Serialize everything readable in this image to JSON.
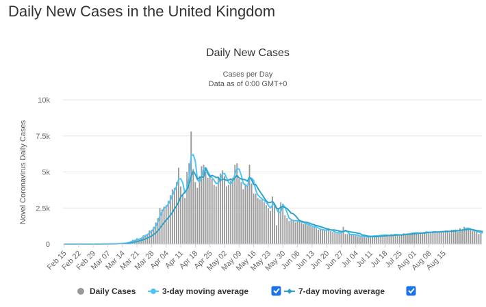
{
  "page": {
    "title": "Daily New Cases in the United Kingdom"
  },
  "chart_data": {
    "type": "bar",
    "title": "Daily New Cases",
    "subtitle": [
      "Cases per Day",
      "Data as of 0:00 GMT+0"
    ],
    "ylabel": "Novel Coronavirus Daily Cases",
    "xlabel": "",
    "ylim": [
      0,
      10000
    ],
    "y_ticks": [
      {
        "value": 0,
        "label": "0"
      },
      {
        "value": 2500,
        "label": "2.5k"
      },
      {
        "value": 5000,
        "label": "5k"
      },
      {
        "value": 7500,
        "label": "7.5k"
      },
      {
        "value": 10000,
        "label": "10k"
      }
    ],
    "x_tick_labels": [
      "Feb 15",
      "Feb 22",
      "Feb 29",
      "Mar 07",
      "Mar 14",
      "Mar 21",
      "Mar 28",
      "Apr 04",
      "Apr 11",
      "Apr 18",
      "Apr 25",
      "May 02",
      "May 09",
      "May 16",
      "May 23",
      "May 30",
      "Jun 06",
      "Jun 13",
      "Jun 20",
      "Jun 27",
      "Jul 04",
      "Jul 11",
      "Jul 18",
      "Jul 25",
      "Aug 01",
      "Aug 08",
      "Aug 15"
    ],
    "start_label": "Feb 15",
    "legend": {
      "position": "bottom",
      "items": [
        {
          "name": "Daily Cases",
          "marker": "circle",
          "color": "#999999",
          "checkbox": false
        },
        {
          "name": "3-day moving average",
          "marker": "circle-line",
          "color": "#4FC3F7",
          "checkbox": true,
          "checked": true
        },
        {
          "name": "7-day moving average",
          "marker": "diamond-line",
          "color": "#2EA3C7",
          "checkbox": true,
          "checked": true
        }
      ]
    },
    "grid": true,
    "series": [
      {
        "name": "Daily Cases",
        "type": "bar",
        "color": "#999999",
        "values": [
          0,
          0,
          0,
          0,
          0,
          0,
          0,
          0,
          0,
          0,
          0,
          0,
          0,
          0,
          3,
          2,
          4,
          4,
          3,
          5,
          8,
          10,
          14,
          16,
          20,
          30,
          40,
          50,
          60,
          70,
          100,
          140,
          210,
          300,
          250,
          410,
          350,
          450,
          600,
          650,
          700,
          950,
          1000,
          1200,
          1500,
          1800,
          2500,
          2400,
          2600,
          2700,
          3000,
          3400,
          3800,
          3900,
          4300,
          5300,
          4000,
          3400,
          3200,
          5000,
          5600,
          7800,
          5200,
          4300,
          3900,
          4700,
          5400,
          5500,
          5000,
          4600,
          4700,
          4500,
          4100,
          4000,
          4600,
          4900,
          5100,
          4700,
          4000,
          4100,
          4400,
          4600,
          5500,
          5600,
          4500,
          4300,
          3800,
          4200,
          4000,
          5500,
          4200,
          3500,
          3500,
          3200,
          3100,
          3100,
          2900,
          2700,
          2500,
          2300,
          3300,
          2700,
          1300,
          2500,
          2900,
          2800,
          2000,
          1800,
          1600,
          1700,
          1600,
          1500,
          1600,
          1600,
          1500,
          1400,
          1400,
          1300,
          1250,
          1200,
          1250,
          1100,
          1000,
          1000,
          1000,
          950,
          950,
          1100,
          900,
          850,
          800,
          750,
          800,
          800,
          1200,
          700,
          700,
          650,
          650,
          700,
          600,
          550,
          500,
          600,
          550,
          450,
          500,
          500,
          550,
          600,
          550,
          550,
          600,
          650,
          650,
          600,
          550,
          700,
          650,
          650,
          650,
          600,
          650,
          750,
          700,
          700,
          750,
          800,
          750,
          800,
          750,
          700,
          800,
          850,
          850,
          800,
          800,
          900,
          800,
          850,
          850,
          900,
          900,
          950,
          850,
          800,
          1000,
          1000,
          900,
          850,
          1100,
          1000,
          1200,
          1100,
          1000,
          1000,
          900,
          900,
          900,
          700,
          750
        ]
      },
      {
        "name": "3-day moving average",
        "type": "line",
        "color": "#4FC3F7",
        "values": [
          0,
          0,
          0,
          0,
          0,
          0,
          0,
          0,
          0,
          0,
          0,
          0,
          0,
          1,
          2,
          3,
          3,
          4,
          4,
          5,
          7,
          10,
          11,
          13,
          17,
          20,
          30,
          37,
          42,
          60,
          73,
          103,
          150,
          217,
          253,
          323,
          333,
          403,
          467,
          567,
          650,
          767,
          883,
          1050,
          1233,
          1500,
          1933,
          2233,
          2500,
          2567,
          2767,
          3033,
          3400,
          3700,
          4000,
          4500,
          4533,
          4233,
          3533,
          3867,
          4600,
          6133,
          6200,
          5767,
          4467,
          4300,
          4667,
          5200,
          5300,
          5033,
          4767,
          4600,
          4433,
          4200,
          4233,
          4500,
          4867,
          4900,
          4600,
          4267,
          4167,
          4367,
          4833,
          5233,
          5200,
          4800,
          4200,
          4100,
          4000,
          4567,
          4567,
          4400,
          3733,
          3400,
          3267,
          3133,
          3033,
          2900,
          2700,
          2500,
          2700,
          2767,
          2433,
          2167,
          2233,
          2733,
          2567,
          2200,
          1800,
          1700,
          1633,
          1600,
          1633,
          1567,
          1567,
          1500,
          1433,
          1367,
          1317,
          1250,
          1233,
          1183,
          1117,
          1033,
          1000,
          983,
          967,
          1000,
          983,
          950,
          850,
          800,
          783,
          783,
          917,
          900,
          867,
          683,
          667,
          667,
          650,
          617,
          550,
          550,
          550,
          517,
          483,
          517,
          550,
          567,
          567,
          583,
          600,
          617,
          633,
          617,
          600,
          617,
          633,
          667,
          650,
          633,
          633,
          667,
          683,
          700,
          717,
          750,
          767,
          783,
          767,
          750,
          767,
          800,
          833,
          817,
          817,
          833,
          867,
          833,
          850,
          867,
          867,
          883,
          900,
          883,
          883,
          933,
          967,
          917,
          933,
          983,
          1033,
          1100,
          1100,
          1033,
          967,
          933,
          900,
          833,
          783,
          783
        ]
      },
      {
        "name": "7-day moving average",
        "type": "line",
        "color": "#2EA3C7",
        "values": [
          0,
          0,
          0,
          0,
          0,
          0,
          0,
          0,
          0,
          0,
          0,
          0,
          0,
          0,
          0,
          1,
          2,
          2,
          3,
          3,
          4,
          5,
          7,
          8,
          11,
          14,
          17,
          22,
          29,
          38,
          48,
          57,
          74,
          102,
          141,
          179,
          219,
          262,
          309,
          359,
          424,
          495,
          562,
          665,
          779,
          916,
          1110,
          1307,
          1486,
          1670,
          1818,
          2000,
          2201,
          2429,
          2643,
          2900,
          3273,
          3443,
          3614,
          3769,
          4143,
          4700,
          5057,
          4836,
          4486,
          4616,
          4650,
          4643,
          5271,
          4886,
          4663,
          4763,
          4700,
          4614,
          4633,
          4414,
          4500,
          4500,
          4414,
          4443,
          4514,
          4414,
          4600,
          4757,
          4586,
          4514,
          4486,
          4457,
          4357,
          4643,
          4461,
          4129,
          4129,
          3871,
          3643,
          3443,
          3214,
          3000,
          2871,
          2886,
          2957,
          2786,
          2500,
          2443,
          2557,
          2600,
          2536,
          2471,
          2314,
          2143,
          2100,
          1971,
          1800,
          1629,
          1586,
          1536,
          1514,
          1493,
          1436,
          1379,
          1343,
          1286,
          1257,
          1207,
          1164,
          1107,
          1064,
          1021,
          986,
          983,
          974,
          940,
          907,
          876,
          857,
          943,
          886,
          857,
          829,
          814,
          793,
          750,
          729,
          636,
          614,
          579,
          550,
          543,
          521,
          507,
          521,
          529,
          543,
          557,
          571,
          586,
          593,
          593,
          607,
          621,
          629,
          636,
          636,
          650,
          664,
          679,
          686,
          700,
          721,
          736,
          750,
          757,
          757,
          771,
          793,
          806,
          814,
          814,
          829,
          836,
          843,
          850,
          864,
          871,
          871,
          879,
          893,
          907,
          900,
          936,
          964,
          971,
          986,
          1000,
          1021,
          1036,
          1000,
          971,
          936,
          914,
          886,
          871
        ]
      }
    ]
  }
}
